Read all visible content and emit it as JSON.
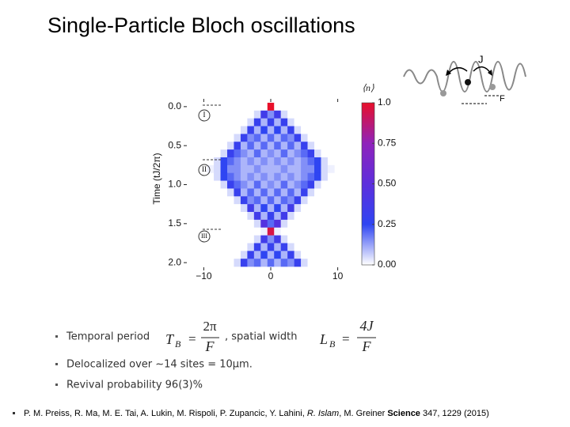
{
  "title": "Single-Particle Bloch oscillations",
  "chart_data": {
    "type": "heatmap",
    "y_label": "Time (tJ/2π)",
    "y_inverted": true,
    "x": [
      -9,
      -8,
      -7,
      -6,
      -5,
      -4,
      -3,
      -2,
      -1,
      0,
      1,
      2,
      3,
      4,
      5,
      6,
      7,
      8,
      9
    ],
    "y": [
      0,
      0.1,
      0.2,
      0.3,
      0.4,
      0.5,
      0.6,
      0.7,
      0.8,
      0.9,
      1,
      1.1,
      1.2,
      1.3,
      1.4,
      1.5,
      1.6,
      1.7,
      1.8,
      1.9,
      2
    ],
    "values": [
      [
        0,
        0,
        0,
        0,
        0,
        0,
        0,
        0,
        0,
        1,
        0,
        0,
        0,
        0,
        0,
        0,
        0,
        0,
        0
      ],
      [
        0,
        0,
        0,
        0,
        0,
        0,
        0,
        0.05,
        0.35,
        0.15,
        0.35,
        0.05,
        0,
        0,
        0,
        0,
        0,
        0,
        0
      ],
      [
        0,
        0,
        0,
        0,
        0,
        0,
        0.05,
        0.3,
        0.1,
        0.3,
        0.1,
        0.3,
        0.05,
        0,
        0,
        0,
        0,
        0,
        0
      ],
      [
        0,
        0,
        0,
        0,
        0,
        0.05,
        0.3,
        0.1,
        0.25,
        0.1,
        0.25,
        0.1,
        0.3,
        0.05,
        0,
        0,
        0,
        0,
        0
      ],
      [
        0,
        0,
        0,
        0,
        0.05,
        0.3,
        0.15,
        0.2,
        0.1,
        0.2,
        0.1,
        0.2,
        0.15,
        0.3,
        0.05,
        0,
        0,
        0,
        0
      ],
      [
        0,
        0,
        0,
        0.05,
        0.3,
        0.1,
        0.2,
        0.1,
        0.2,
        0.1,
        0.2,
        0.1,
        0.2,
        0.1,
        0.3,
        0.05,
        0,
        0,
        0
      ],
      [
        0,
        0,
        0.05,
        0.3,
        0.2,
        0.15,
        0.1,
        0.2,
        0.1,
        0.15,
        0.1,
        0.2,
        0.1,
        0.15,
        0.2,
        0.3,
        0.05,
        0,
        0
      ],
      [
        0,
        0.05,
        0.25,
        0.2,
        0.15,
        0.1,
        0.15,
        0.1,
        0.15,
        0.1,
        0.15,
        0.1,
        0.15,
        0.1,
        0.15,
        0.2,
        0.25,
        0.05,
        0
      ],
      [
        0.02,
        0.05,
        0.25,
        0.15,
        0.15,
        0.1,
        0.1,
        0.15,
        0.1,
        0.1,
        0.1,
        0.15,
        0.1,
        0.1,
        0.15,
        0.15,
        0.25,
        0.05,
        0.02
      ],
      [
        0,
        0.05,
        0.25,
        0.2,
        0.15,
        0.1,
        0.15,
        0.1,
        0.15,
        0.1,
        0.15,
        0.1,
        0.15,
        0.1,
        0.15,
        0.2,
        0.25,
        0.05,
        0
      ],
      [
        0,
        0,
        0.05,
        0.3,
        0.2,
        0.15,
        0.1,
        0.2,
        0.1,
        0.15,
        0.1,
        0.2,
        0.1,
        0.15,
        0.2,
        0.3,
        0.05,
        0,
        0
      ],
      [
        0,
        0,
        0,
        0.05,
        0.3,
        0.1,
        0.2,
        0.1,
        0.2,
        0.1,
        0.2,
        0.1,
        0.2,
        0.1,
        0.3,
        0.05,
        0,
        0,
        0
      ],
      [
        0,
        0,
        0,
        0,
        0.05,
        0.3,
        0.15,
        0.2,
        0.1,
        0.2,
        0.1,
        0.2,
        0.15,
        0.3,
        0.05,
        0,
        0,
        0,
        0
      ],
      [
        0,
        0,
        0,
        0,
        0,
        0.05,
        0.35,
        0.1,
        0.25,
        0.1,
        0.25,
        0.1,
        0.35,
        0.05,
        0,
        0,
        0,
        0,
        0
      ],
      [
        0,
        0,
        0,
        0,
        0,
        0,
        0.05,
        0.35,
        0.1,
        0.3,
        0.1,
        0.35,
        0.05,
        0,
        0,
        0,
        0,
        0,
        0
      ],
      [
        0,
        0,
        0,
        0,
        0,
        0,
        0,
        0.05,
        0.45,
        0.2,
        0.45,
        0.05,
        0,
        0,
        0,
        0,
        0,
        0,
        0
      ],
      [
        0,
        0,
        0,
        0,
        0,
        0,
        0,
        0,
        0.02,
        0.95,
        0.02,
        0,
        0,
        0,
        0,
        0,
        0,
        0,
        0
      ],
      [
        0,
        0,
        0,
        0,
        0,
        0,
        0,
        0.05,
        0.35,
        0.15,
        0.35,
        0.05,
        0,
        0,
        0,
        0,
        0,
        0,
        0
      ],
      [
        0,
        0,
        0,
        0,
        0,
        0,
        0.05,
        0.3,
        0.1,
        0.3,
        0.1,
        0.3,
        0.05,
        0,
        0,
        0,
        0,
        0,
        0
      ],
      [
        0,
        0,
        0,
        0,
        0,
        0.05,
        0.3,
        0.1,
        0.25,
        0.1,
        0.25,
        0.1,
        0.3,
        0.05,
        0,
        0,
        0,
        0,
        0
      ],
      [
        0,
        0,
        0,
        0,
        0.05,
        0.3,
        0.15,
        0.2,
        0.1,
        0.2,
        0.1,
        0.2,
        0.15,
        0.3,
        0.05,
        0,
        0,
        0,
        0
      ]
    ],
    "xlim": [
      -13,
      13
    ],
    "ylim": [
      -0.1,
      2.1
    ],
    "xticks": [
      {
        "value": -10,
        "label": "−10"
      },
      0,
      10
    ],
    "yticks": [
      {
        "value": 0,
        "label": "0.0"
      },
      0.5,
      {
        "value": 1,
        "label": "1.0"
      },
      1.5,
      {
        "value": 2,
        "label": "2.0"
      }
    ],
    "markers": [
      "I",
      "II",
      "III"
    ],
    "colorbar": {
      "title": "⟨n⟩",
      "lim": [
        0,
        1
      ],
      "ticks": [
        {
          "value": 0,
          "label": "0.00"
        },
        0.25,
        {
          "value": 0.5,
          "label": "0.50"
        },
        0.75,
        {
          "value": 1,
          "label": "1.0"
        }
      ],
      "colors": [
        "#ffffff",
        "#2f45f2",
        "#5d2fdc",
        "#8f22bb",
        "#e8102a"
      ]
    }
  },
  "schematic": {
    "labels": [
      "J",
      "F"
    ]
  },
  "bullets": [
    {
      "text": "Temporal period",
      "formula": {
        "lhs": "T",
        "sub": "B",
        "op": "=",
        "num": "2π",
        "den": "F"
      },
      "text2": ", spatial width",
      "formula2": {
        "lhs": "L",
        "sub": "B",
        "op": "=",
        "num": "4J",
        "den": "F"
      }
    },
    {
      "text": "Delocalized over ∼14 sites = 10µm."
    },
    {
      "text": "Revival probability 96(3)%"
    }
  ],
  "citation": {
    "parts": [
      {
        "text": "P. M. Preiss, R. Ma, M. E. Tai, A. Lukin, M. Rispoli, P. Zupancic, Y. Lahini, "
      },
      {
        "text": "R. Islam",
        "style": "italic"
      },
      {
        "text": ", M. Greiner "
      },
      {
        "text": "Science",
        "style": "bold"
      },
      {
        "text": " 347, 1229 (2015)"
      }
    ]
  }
}
